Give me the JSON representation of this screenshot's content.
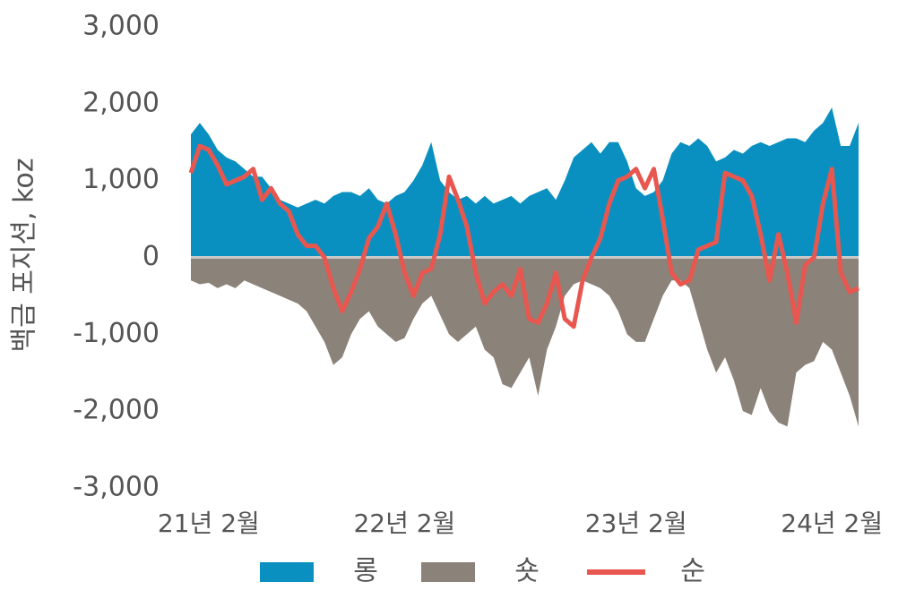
{
  "chart_data": {
    "type": "area",
    "y_label": "백금 포지션, koz",
    "categories": [
      null,
      null,
      "21년 2월",
      null,
      null,
      null,
      null,
      null,
      null,
      null,
      null,
      null,
      null,
      null,
      null,
      null,
      null,
      null,
      null,
      null,
      null,
      null,
      null,
      null,
      "22년 2월",
      null,
      null,
      null,
      null,
      null,
      null,
      null,
      null,
      null,
      null,
      null,
      null,
      null,
      null,
      null,
      null,
      null,
      null,
      null,
      null,
      null,
      null,
      null,
      null,
      null,
      "23년 2월",
      null,
      null,
      null,
      null,
      null,
      null,
      null,
      null,
      null,
      null,
      null,
      null,
      null,
      null,
      null,
      null,
      null,
      null,
      null,
      null,
      null,
      "24년 2월",
      null,
      null,
      null
    ],
    "series": [
      {
        "name": "롱",
        "kind": "area",
        "color": "#0a90c0",
        "values": [
          1600,
          1750,
          1600,
          1400,
          1300,
          1250,
          1150,
          1050,
          1050,
          900,
          750,
          700,
          650,
          700,
          750,
          700,
          800,
          850,
          850,
          800,
          900,
          750,
          700,
          800,
          850,
          1000,
          1200,
          1500,
          1000,
          850,
          750,
          800,
          700,
          800,
          700,
          750,
          800,
          700,
          800,
          850,
          900,
          750,
          1000,
          1300,
          1400,
          1500,
          1350,
          1500,
          1500,
          1250,
          900,
          800,
          850,
          1000,
          1350,
          1500,
          1450,
          1550,
          1450,
          1250,
          1300,
          1400,
          1350,
          1450,
          1500,
          1450,
          1500,
          1550,
          1550,
          1500,
          1650,
          1750,
          1950,
          1450,
          1450,
          1750
        ]
      },
      {
        "name": "숏",
        "kind": "area",
        "color": "#8b8279",
        "values": [
          -300,
          -350,
          -330,
          -400,
          -350,
          -400,
          -300,
          -350,
          -400,
          -450,
          -500,
          -550,
          -600,
          -700,
          -900,
          -1100,
          -1400,
          -1300,
          -1000,
          -800,
          -700,
          -900,
          -1000,
          -1100,
          -1050,
          -800,
          -600,
          -500,
          -750,
          -1000,
          -1100,
          -1000,
          -900,
          -1200,
          -1300,
          -1650,
          -1700,
          -1500,
          -1300,
          -1800,
          -1200,
          -900,
          -500,
          -350,
          -300,
          -350,
          -400,
          -500,
          -700,
          -1000,
          -1100,
          -1100,
          -800,
          -500,
          -300,
          -300,
          -400,
          -800,
          -1200,
          -1500,
          -1300,
          -1600,
          -2000,
          -2050,
          -1700,
          -2000,
          -2150,
          -2200,
          -1500,
          -1400,
          -1350,
          -1100,
          -1200,
          -1500,
          -1800,
          -2200
        ]
      },
      {
        "name": "순",
        "kind": "line",
        "color": "#e8574f",
        "values": [
          1100,
          1450,
          1400,
          1200,
          950,
          1000,
          1050,
          1150,
          750,
          900,
          700,
          600,
          300,
          150,
          150,
          0,
          -400,
          -700,
          -450,
          -150,
          250,
          400,
          700,
          300,
          -200,
          -500,
          -200,
          -150,
          300,
          1050,
          750,
          400,
          -200,
          -600,
          -450,
          -350,
          -500,
          -150,
          -800,
          -850,
          -600,
          -200,
          -800,
          -900,
          -300,
          0,
          250,
          700,
          1000,
          1050,
          1150,
          900,
          1150,
          500,
          -200,
          -350,
          -300,
          100,
          150,
          200,
          1100,
          1050,
          1000,
          800,
          300,
          -300,
          300,
          -200,
          -850,
          -100,
          0,
          700,
          1150,
          -200,
          -450,
          -400
        ]
      }
    ],
    "ylim": [
      -3000,
      3000
    ],
    "yticks": [
      {
        "value": -3000,
        "label": "-3,000"
      },
      {
        "value": -2000,
        "label": "-2,000"
      },
      {
        "value": -1000,
        "label": "-1,000"
      },
      0,
      {
        "value": 1000,
        "label": "1,000"
      },
      {
        "value": 2000,
        "label": "2,000"
      },
      {
        "value": 3000,
        "label": "3,000"
      }
    ]
  }
}
